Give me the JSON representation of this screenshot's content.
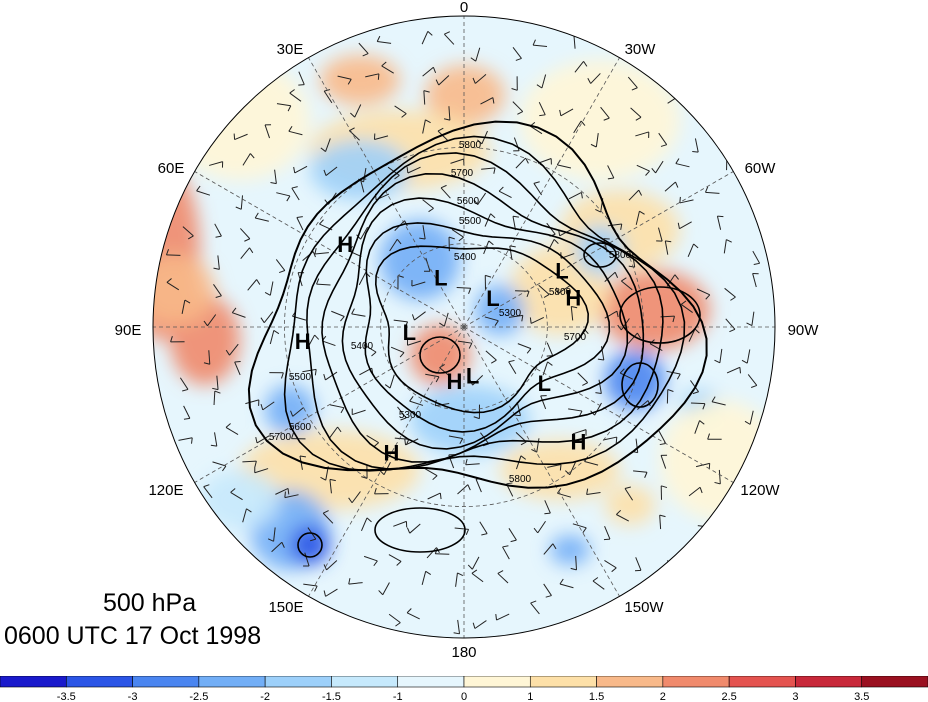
{
  "title": {
    "level": "500 hPa",
    "time": "0600 UTC 17 Oct 1998"
  },
  "longitude_labels": [
    "0",
    "30W",
    "60W",
    "90W",
    "120W",
    "150W",
    "180",
    "150E",
    "120E",
    "90E",
    "60E",
    "30E"
  ],
  "contour_labels": [
    "5800",
    "5700",
    "5600",
    "5500",
    "5400",
    "5300",
    "5300",
    "5400",
    "5500",
    "5600",
    "5700",
    "5800",
    "5800",
    "5800",
    "5700"
  ],
  "pressure_centers": [
    {
      "type": "H",
      "label": "H",
      "lon": 55,
      "lat": 40
    },
    {
      "type": "H",
      "label": "H",
      "lon": 95,
      "lat": 35
    },
    {
      "type": "H",
      "label": "H",
      "lon": 170,
      "lat": 70
    },
    {
      "type": "H",
      "label": "H",
      "lon": -75,
      "lat": 50
    },
    {
      "type": "H",
      "label": "H",
      "lon": -135,
      "lat": 35
    },
    {
      "type": "H",
      "label": "H",
      "lon": 150,
      "lat": 40
    },
    {
      "type": "L",
      "label": "L",
      "lon": 25,
      "lat": 70
    },
    {
      "type": "L",
      "label": "L",
      "lon": 95,
      "lat": 70
    },
    {
      "type": "L",
      "label": "L",
      "lon": -45,
      "lat": 75
    },
    {
      "type": "L",
      "label": "L",
      "lon": -125,
      "lat": 55
    },
    {
      "type": "L",
      "label": "L",
      "lon": -170,
      "lat": 72
    },
    {
      "type": "L",
      "label": "L",
      "lon": -60,
      "lat": 50
    }
  ],
  "colorbar": {
    "labels": [
      "-3.5",
      "-3",
      "-2.5",
      "-2",
      "-1.5",
      "-1",
      "0",
      "1",
      "1.5",
      "2",
      "2.5",
      "3",
      "3.5"
    ],
    "colors": [
      "#1a1acc",
      "#2b55e6",
      "#4a85f0",
      "#72aef6",
      "#9dd0fa",
      "#c6e9fc",
      "#e6f6fd",
      "#fff6d6",
      "#fde0a8",
      "#f8b98a",
      "#f08a6c",
      "#e4534f",
      "#c8283a",
      "#9a1020"
    ]
  }
}
